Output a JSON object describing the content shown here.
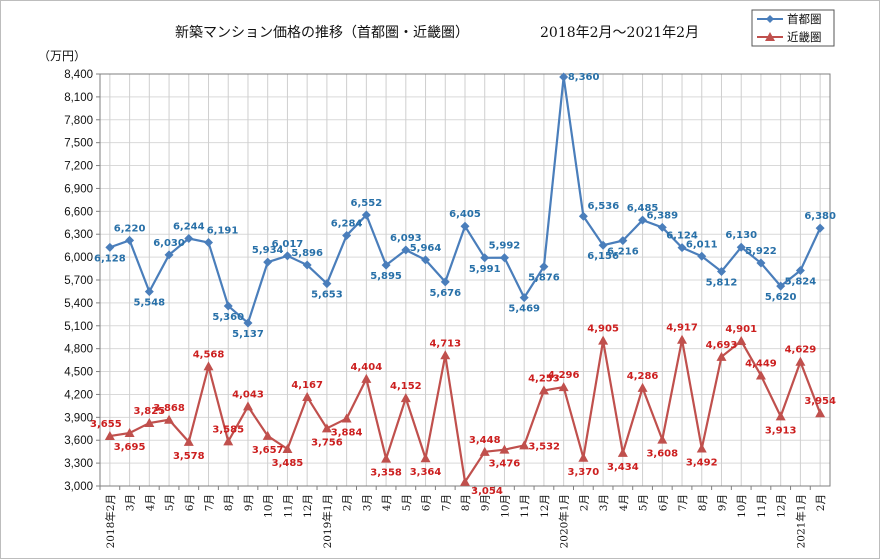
{
  "chart_data": {
    "type": "line",
    "title": "新築マンション価格の推移（首都圏・近畿圏）",
    "period": "2018年2月～2021年2月",
    "ylabel": "（万円）",
    "ylim": [
      3000,
      8400
    ],
    "y_ticks": [
      "3,000",
      "3,300",
      "3,600",
      "3,900",
      "4,200",
      "4,500",
      "4,800",
      "5,100",
      "5,400",
      "5,700",
      "6,000",
      "6,300",
      "6,600",
      "6,900",
      "7,200",
      "7,500",
      "7,800",
      "8,100",
      "8,400"
    ],
    "y_tick_values": [
      3000,
      3300,
      3600,
      3900,
      4200,
      4500,
      4800,
      5100,
      5400,
      5700,
      6000,
      6300,
      6600,
      6900,
      7200,
      7500,
      7800,
      8100,
      8400
    ],
    "categories": [
      "2018年2月",
      "3月",
      "4月",
      "5月",
      "6月",
      "7月",
      "8月",
      "9月",
      "10月",
      "11月",
      "12月",
      "2019年1月",
      "2月",
      "3月",
      "4月",
      "5月",
      "6月",
      "7月",
      "8月",
      "9月",
      "10月",
      "11月",
      "12月",
      "2020年1月",
      "2月",
      "3月",
      "4月",
      "5月",
      "6月",
      "7月",
      "8月",
      "9月",
      "10月",
      "11月",
      "12月",
      "2021年1月",
      "2月"
    ],
    "grid": true,
    "legend_position": "top-right",
    "series": [
      {
        "name": "首都圏",
        "color": "#4a7ebb",
        "marker": "diamond",
        "values": [
          6128,
          6220,
          5548,
          6030,
          6244,
          6191,
          5360,
          5137,
          5934,
          6017,
          5896,
          5653,
          6284,
          6552,
          5895,
          6093,
          5964,
          5676,
          6405,
          5991,
          5992,
          5469,
          5876,
          8360,
          6536,
          6156,
          6216,
          6485,
          6389,
          6124,
          6011,
          5812,
          6130,
          5922,
          5620,
          5824,
          6380
        ],
        "labels": [
          "6,128",
          "6,220",
          "5,548",
          "6,030",
          "6,244",
          "6,191",
          "5,360",
          "5,137",
          "5,934",
          "6,017",
          "5,896",
          "5,653",
          "6,284",
          "6,552",
          "5,895",
          "6,093",
          "5,964",
          "5,676",
          "6,405",
          "5,991",
          "5,992",
          "5,469",
          "5,876",
          "8,360",
          "6,536",
          "6,156",
          "6,216",
          "6,485",
          "6,389",
          "6,124",
          "6,011",
          "5,812",
          "6,130",
          "5,922",
          "5,620",
          "5,824",
          "6,380"
        ]
      },
      {
        "name": "近畿圏",
        "color": "#c0504d",
        "marker": "triangle",
        "values": [
          3655,
          3695,
          3825,
          3868,
          3578,
          4568,
          3585,
          4043,
          3657,
          3485,
          4167,
          3756,
          3884,
          4404,
          3358,
          4152,
          3364,
          4713,
          3054,
          3448,
          3476,
          3532,
          4253,
          4296,
          3370,
          4905,
          3434,
          4286,
          3608,
          4917,
          3492,
          4693,
          4901,
          4449,
          3913,
          4629,
          3954
        ],
        "labels": [
          "3,655",
          "3,695",
          "3,825",
          "3,868",
          "3,578",
          "4,568",
          "3,585",
          "4,043",
          "3,657",
          "3,485",
          "4,167",
          "3,756",
          "3,884",
          "4,404",
          "3,358",
          "4,152",
          "3,364",
          "4,713",
          "3,054",
          "3,448",
          "3,476",
          "3,532",
          "4,253",
          "4,296",
          "3,370",
          "4,905",
          "3,434",
          "4,286",
          "3,608",
          "4,917",
          "3,492",
          "4,693",
          "4,901",
          "4,449",
          "3,913",
          "4,629",
          "3,954"
        ]
      }
    ]
  }
}
